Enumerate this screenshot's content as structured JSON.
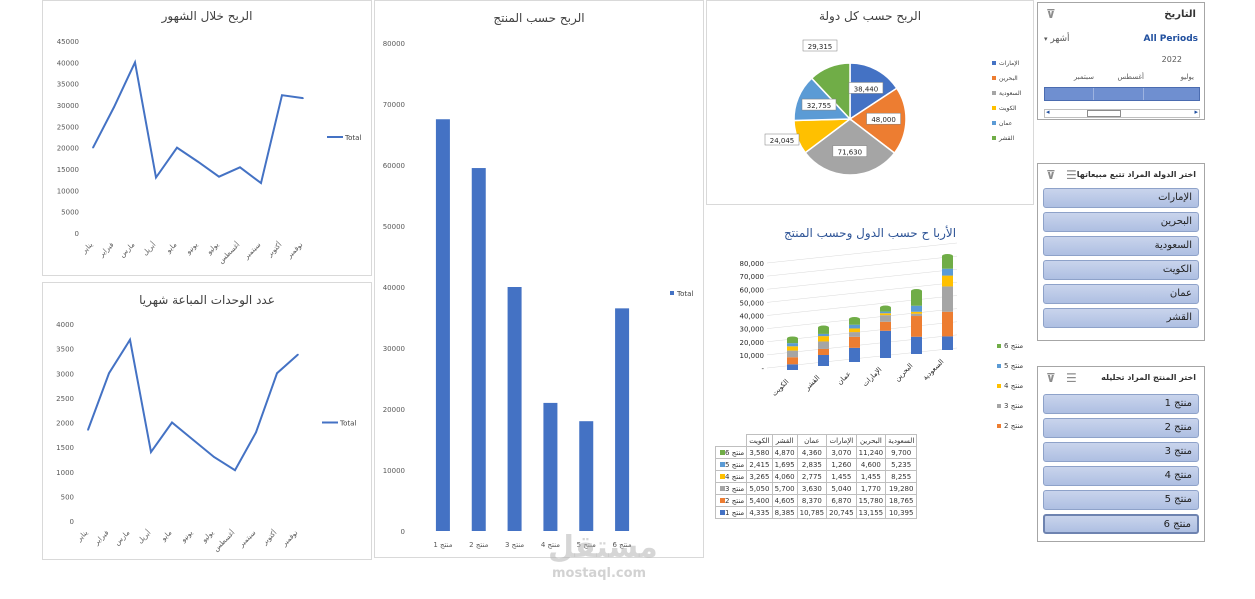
{
  "months": [
    "يناير",
    "فبراير",
    "مارس",
    "أبريل",
    "مايو",
    "يونيو",
    "يوليو",
    "أغسطس",
    "سبتمبر",
    "أكتوبر",
    "نوفمبر"
  ],
  "chart_data": [
    {
      "type": "line",
      "title": "الربح خلال الشهور",
      "ylim": [
        0,
        45000
      ],
      "yticks": [
        "0",
        "5000",
        "10000",
        "15000",
        "20000",
        "25000",
        "30000",
        "35000",
        "40000",
        "45000"
      ],
      "legend": "Total",
      "series": [
        {
          "name": "Total",
          "values": [
            20000,
            29500,
            40000,
            13000,
            20000,
            16700,
            13200,
            15400,
            11700,
            32300,
            31600
          ]
        }
      ]
    },
    {
      "type": "line",
      "title": "عدد الوحدات المباعة شهريا",
      "ylim": [
        0,
        4000
      ],
      "yticks": [
        "0",
        "500",
        "1000",
        "1500",
        "2000",
        "2500",
        "3000",
        "3500",
        "4000"
      ],
      "legend": "Total",
      "series": [
        {
          "name": "Total",
          "values": [
            1850,
            3000,
            3680,
            1400,
            2000,
            1650,
            1300,
            1030,
            1800,
            3000,
            3380
          ]
        }
      ]
    },
    {
      "type": "bar",
      "title": "الربح حسب المنتج",
      "ylim": [
        0,
        80000
      ],
      "yticks": [
        "0",
        "10000",
        "20000",
        "30000",
        "40000",
        "50000",
        "60000",
        "70000",
        "80000"
      ],
      "legend": "Total",
      "categories": [
        "منتج 1",
        "منتج 2",
        "منتج 3",
        "منتج 4",
        "منتج 5",
        "منتج 6"
      ],
      "values": [
        67500,
        59500,
        40000,
        21000,
        18000,
        36500
      ]
    },
    {
      "type": "pie",
      "title": "الربح حسب كل دولة",
      "categories": [
        "الإمارات",
        "البحرين",
        "السعودية",
        "الكويت",
        "عمان",
        "القشر"
      ],
      "values": [
        38440,
        48000,
        71630,
        24045,
        32755,
        29315
      ],
      "labels": [
        "38,440",
        "48,000",
        "71,630",
        "24,045",
        "32,755",
        "29,315"
      ],
      "colors": [
        "#4472c4",
        "#ed7d31",
        "#a5a5a5",
        "#ffc000",
        "#5b9bd5",
        "#70ad47"
      ]
    },
    {
      "type": "bar",
      "title": "الأربا ح حسب الدول وحسب المنتج",
      "stacked": true,
      "ylim": [
        0,
        80000
      ],
      "yticks": [
        "-",
        "10,000",
        "20,000",
        "30,000",
        "40,000",
        "50,000",
        "60,000",
        "70,000",
        "80,000"
      ],
      "categories": [
        "الكويت",
        "القشر",
        "عمان",
        "الإمارات",
        "البحرين",
        "السعودية"
      ],
      "series": [
        {
          "name": "منتج 1",
          "values": [
            4335,
            8385,
            10785,
            20745,
            13155,
            10395
          ]
        },
        {
          "name": "منتج 2",
          "values": [
            5400,
            4605,
            8370,
            6870,
            15780,
            18765
          ]
        },
        {
          "name": "منتج 3",
          "values": [
            5050,
            5700,
            3630,
            5040,
            1770,
            19280
          ]
        },
        {
          "name": "منتج 4",
          "values": [
            3265,
            4060,
            2775,
            1455,
            1455,
            8255
          ]
        },
        {
          "name": "منتج 5",
          "values": [
            2415,
            1695,
            2835,
            1260,
            4600,
            5235
          ]
        },
        {
          "name": "منتج 6",
          "values": [
            3580,
            4870,
            4360,
            3070,
            11240,
            9700
          ]
        }
      ],
      "colors": [
        "#4472c4",
        "#ed7d31",
        "#a5a5a5",
        "#ffc000",
        "#5b9bd5",
        "#70ad47"
      ]
    }
  ],
  "table": {
    "headers": [
      "الكويت",
      "القشر",
      "عمان",
      "الإمارات",
      "البحرين",
      "السعودية"
    ],
    "rows": [
      {
        "label": "منتج 6",
        "color": "#70ad47",
        "cells": [
          "3,580",
          "4,870",
          "4,360",
          "3,070",
          "11,240",
          "9,700"
        ]
      },
      {
        "label": "منتج 5",
        "color": "#5b9bd5",
        "cells": [
          "2,415",
          "1,695",
          "2,835",
          "1,260",
          "4,600",
          "5,235"
        ]
      },
      {
        "label": "منتج 4",
        "color": "#ffc000",
        "cells": [
          "3,265",
          "4,060",
          "2,775",
          "1,455",
          "1,455",
          "8,255"
        ]
      },
      {
        "label": "منتج 3",
        "color": "#a5a5a5",
        "cells": [
          "5,050",
          "5,700",
          "3,630",
          "5,040",
          "1,770",
          "19,280"
        ]
      },
      {
        "label": "منتج 2",
        "color": "#ed7d31",
        "cells": [
          "5,400",
          "4,605",
          "8,370",
          "6,870",
          "15,780",
          "18,765"
        ]
      },
      {
        "label": "منتج 1",
        "color": "#4472c4",
        "cells": [
          "4,335",
          "8,385",
          "10,785",
          "20,745",
          "13,155",
          "10,395"
        ]
      }
    ]
  },
  "timeline": {
    "title": "التاريخ",
    "period_label": "All Periods",
    "unit": "أشهر",
    "year": "2022",
    "months": [
      "يوليو",
      "أغسطس",
      "سبتمبر"
    ]
  },
  "country_slicer": {
    "title": "اختر الدولة المراد تتبع مبيعاتها",
    "items": [
      "الإمارات",
      "البحرين",
      "السعودية",
      "الكويت",
      "عمان",
      "القشر"
    ]
  },
  "product_slicer": {
    "title": "اختر المنتج المراد تحليله",
    "items": [
      "منتج 1",
      "منتج 2",
      "منتج 3",
      "منتج 4",
      "منتج 5",
      "منتج 6"
    ]
  },
  "watermark": {
    "text": "مستقل",
    "sub": "mostaql.com"
  }
}
